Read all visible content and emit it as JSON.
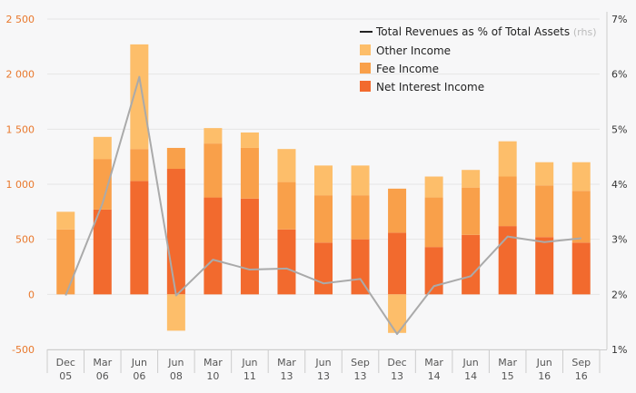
{
  "chart_data": {
    "type": "bar",
    "stacked": true,
    "categories": [
      [
        "Dec",
        "05"
      ],
      [
        "Mar",
        "06"
      ],
      [
        "Jun",
        "06"
      ],
      [
        "Jun",
        "08"
      ],
      [
        "Mar",
        "10"
      ],
      [
        "Jun",
        "11"
      ],
      [
        "Mar",
        "13"
      ],
      [
        "Jun",
        "13"
      ],
      [
        "Sep",
        "13"
      ],
      [
        "Dec",
        "13"
      ],
      [
        "Mar",
        "14"
      ],
      [
        "Jun",
        "14"
      ],
      [
        "Mar",
        "15"
      ],
      [
        "Jun",
        "16"
      ],
      [
        "Sep",
        "16"
      ]
    ],
    "series": [
      {
        "name": "Net Interest Income",
        "color": "#f26a2e",
        "values": [
          0,
          770,
          1030,
          1140,
          880,
          870,
          590,
          470,
          500,
          560,
          430,
          540,
          620,
          520,
          470
        ]
      },
      {
        "name": "Fee Income",
        "color": "#f9a04a",
        "values": [
          590,
          460,
          290,
          190,
          490,
          460,
          430,
          430,
          400,
          400,
          450,
          430,
          450,
          470,
          470
        ]
      },
      {
        "name": "Other Income",
        "color": "#fdbe6a",
        "values": [
          160,
          200,
          950,
          -330,
          140,
          140,
          300,
          270,
          270,
          -350,
          190,
          160,
          320,
          210,
          260
        ]
      }
    ],
    "line": {
      "name": "Total Revenues as % of Total Assets",
      "suffix": "(rhs)",
      "color": "#aaaaaa",
      "values": [
        1.98,
        3.65,
        5.95,
        1.98,
        2.63,
        2.45,
        2.47,
        2.2,
        2.28,
        1.28,
        2.15,
        2.33,
        3.05,
        2.95,
        3.02
      ]
    },
    "y_left": {
      "range": [
        -500,
        2500
      ],
      "ticks": [
        "-500",
        "0",
        "500",
        "1 000",
        "1 500",
        "2 000",
        "2 500"
      ],
      "values": [
        -500,
        0,
        500,
        1000,
        1500,
        2000,
        2500
      ]
    },
    "y_right": {
      "range": [
        1,
        7
      ],
      "ticks": [
        "1%",
        "2%",
        "3%",
        "4%",
        "5%",
        "6%",
        "7%"
      ],
      "values": [
        1,
        2,
        3,
        4,
        5,
        6,
        7
      ]
    },
    "legend_position": "top-right",
    "grid": true
  }
}
